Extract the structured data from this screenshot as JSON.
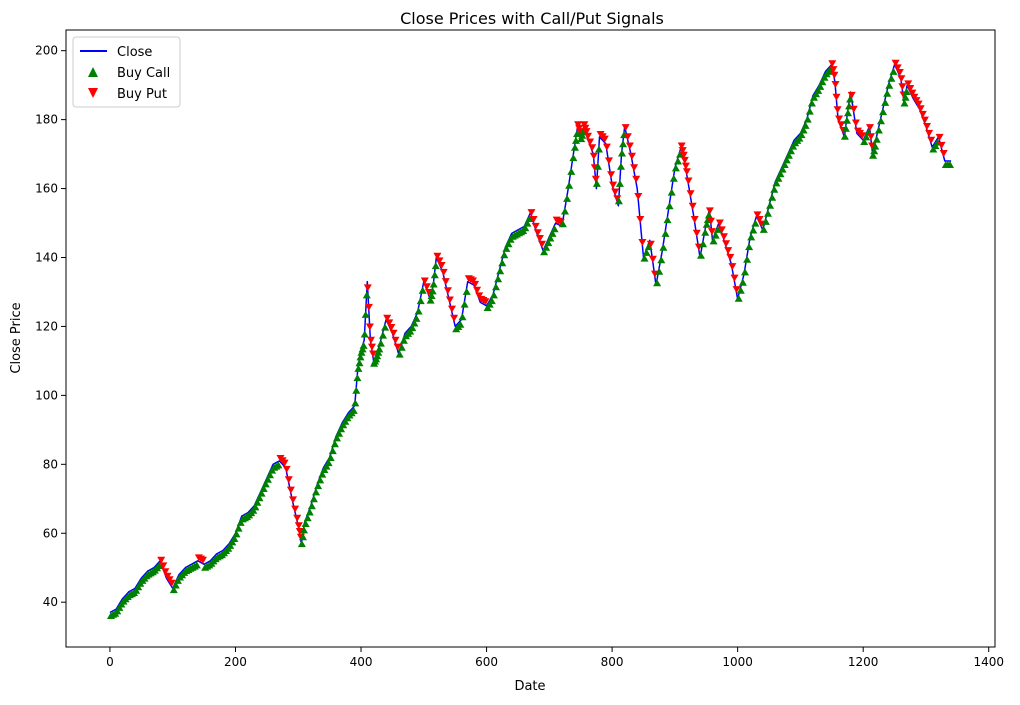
{
  "chart_data": {
    "type": "line",
    "title": "Close Prices with Call/Put Signals",
    "xlabel": "Date",
    "ylabel": "Close Price",
    "xlim": [
      -70,
      1410
    ],
    "ylim": [
      27,
      206
    ],
    "xticks": [
      0,
      200,
      400,
      600,
      800,
      1000,
      1200,
      1400
    ],
    "yticks": [
      40,
      60,
      80,
      100,
      120,
      140,
      160,
      180,
      200
    ],
    "grid": false,
    "legend_position": "upper-left",
    "legend": [
      {
        "label": "Close",
        "kind": "line",
        "color": "#0000ff"
      },
      {
        "label": "Buy Call",
        "kind": "up-triangle",
        "color": "#008000"
      },
      {
        "label": "Buy Put",
        "kind": "down-triangle",
        "color": "#ff0000"
      }
    ],
    "series": [
      {
        "name": "Close",
        "color": "#0000ff",
        "x": [
          0,
          10,
          20,
          30,
          40,
          50,
          60,
          70,
          80,
          90,
          100,
          110,
          120,
          130,
          140,
          150,
          160,
          170,
          180,
          190,
          200,
          210,
          220,
          230,
          240,
          250,
          260,
          270,
          280,
          290,
          300,
          305,
          310,
          320,
          330,
          340,
          350,
          360,
          370,
          380,
          390,
          395,
          400,
          405,
          410,
          415,
          420,
          425,
          430,
          440,
          450,
          460,
          470,
          480,
          490,
          500,
          510,
          515,
          520,
          530,
          540,
          550,
          560,
          570,
          580,
          590,
          600,
          610,
          620,
          630,
          640,
          650,
          660,
          670,
          680,
          690,
          700,
          710,
          720,
          730,
          740,
          745,
          750,
          755,
          760,
          770,
          775,
          780,
          790,
          800,
          810,
          815,
          820,
          830,
          840,
          850,
          860,
          870,
          880,
          890,
          900,
          910,
          915,
          920,
          930,
          940,
          950,
          955,
          960,
          970,
          980,
          990,
          1000,
          1010,
          1020,
          1030,
          1040,
          1050,
          1060,
          1070,
          1080,
          1090,
          1100,
          1110,
          1120,
          1130,
          1140,
          1150,
          1155,
          1160,
          1170,
          1175,
          1180,
          1190,
          1200,
          1210,
          1215,
          1220,
          1230,
          1240,
          1250,
          1260,
          1265,
          1270,
          1280,
          1290,
          1300,
          1310,
          1320,
          1330,
          1340
        ],
        "y": [
          37,
          38,
          41,
          43,
          44,
          47,
          49,
          50,
          52,
          47,
          44,
          48,
          50,
          51,
          52,
          51,
          52,
          54,
          55,
          57,
          60,
          65,
          66,
          68,
          72,
          76,
          80,
          81,
          79,
          70,
          62,
          57,
          63,
          68,
          74,
          79,
          82,
          88,
          92,
          95,
          97,
          108,
          113,
          116,
          133,
          116,
          110,
          112,
          115,
          122,
          118,
          112,
          118,
          120,
          124,
          133,
          128,
          132,
          140,
          136,
          128,
          120,
          122,
          133,
          132,
          127,
          126,
          129,
          136,
          143,
          147,
          148,
          149,
          153,
          147,
          142,
          146,
          150,
          149,
          160,
          172,
          178,
          175,
          178,
          175,
          170,
          160,
          175,
          173,
          161,
          155,
          170,
          178,
          170,
          160,
          140,
          145,
          132,
          142,
          154,
          166,
          172,
          168,
          163,
          152,
          140,
          150,
          154,
          145,
          150,
          144,
          138,
          128,
          135,
          146,
          152,
          148,
          155,
          162,
          166,
          170,
          174,
          176,
          180,
          187,
          190,
          194,
          196,
          191,
          180,
          175,
          182,
          188,
          176,
          174,
          178,
          170,
          174,
          182,
          190,
          196,
          192,
          185,
          190,
          186,
          183,
          178,
          172,
          175,
          168,
          168
        ]
      }
    ],
    "signals": {
      "buy_call_color": "#008000",
      "buy_put_color": "#ff0000"
    }
  }
}
